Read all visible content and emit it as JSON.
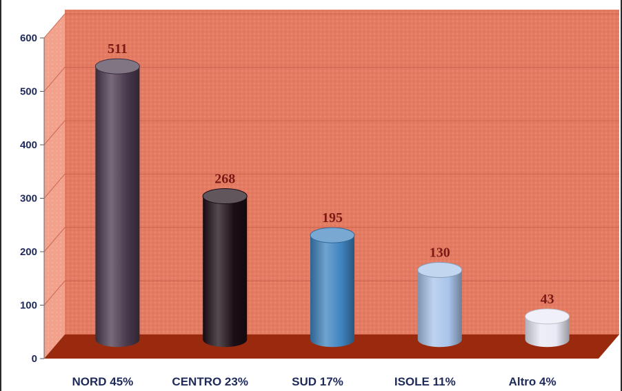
{
  "chart_data": {
    "type": "bar",
    "style": "3d-cylinder",
    "categories": [
      "NORD 45%",
      "CENTRO 23%",
      "SUD 17%",
      "ISOLE 11%",
      "Altro 4%"
    ],
    "values": [
      511,
      268,
      195,
      130,
      43
    ],
    "data_labels": [
      "511",
      "268",
      "195",
      "130",
      "43"
    ],
    "ylim": [
      0,
      600
    ],
    "yticks": [
      0,
      100,
      200,
      300,
      400,
      500,
      600
    ],
    "ytick_labels": [
      "0",
      "100",
      "200",
      "300",
      "400",
      "500",
      "600"
    ],
    "grid": true,
    "legend": "none",
    "colors": {
      "page_background": "#ffffff",
      "wall": "#e57c64",
      "side_wall": "#f2a28c",
      "floor": "#9a2a0e",
      "gridline": "#c25a44",
      "axis_text": "#1e2a5a",
      "data_label_text": "#7a1a16",
      "bars": [
        "#4a3a4e",
        "#1c0e16",
        "#3f84c0",
        "#a8c4ea",
        "#eaeaf6"
      ]
    }
  }
}
